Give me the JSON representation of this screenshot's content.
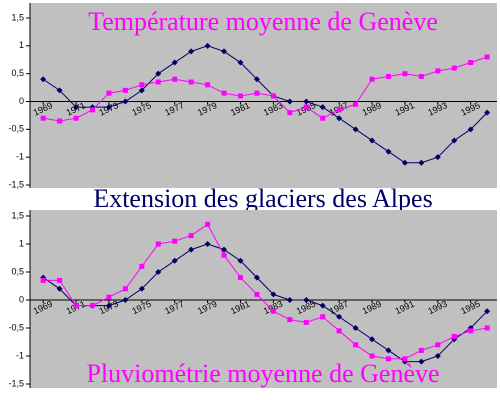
{
  "chart_data": [
    {
      "type": "line",
      "title": "Température moyenne de Genève",
      "x": [
        1969,
        1970,
        1971,
        1972,
        1973,
        1974,
        1975,
        1976,
        1977,
        1978,
        1979,
        1980,
        1981,
        1982,
        1983,
        1984,
        1985,
        1986,
        1987,
        1988,
        1989,
        1990,
        1991,
        1992,
        1993,
        1994,
        1995,
        1996
      ],
      "series": [
        {
          "name": "Extension des glaciers des Alpes",
          "color": "#000066",
          "values": [
            0.4,
            0.2,
            -0.1,
            -0.1,
            -0.1,
            0,
            0.2,
            0.5,
            0.7,
            0.9,
            1.0,
            0.9,
            0.7,
            0.4,
            0.1,
            0,
            0,
            -0.1,
            -0.3,
            -0.5,
            -0.7,
            -0.9,
            -1.1,
            -1.1,
            -1.0,
            -0.7,
            -0.5,
            -0.2
          ]
        },
        {
          "color": "#ff00ff",
          "values": [
            -0.3,
            -0.35,
            -0.3,
            -0.15,
            0.15,
            0.2,
            0.3,
            0.35,
            0.4,
            0.35,
            0.3,
            0.15,
            0.1,
            0.15,
            0.1,
            -0.2,
            -0.1,
            -0.3,
            -0.15,
            -0.05,
            0.4,
            0.45,
            0.5,
            0.45,
            0.55,
            0.6,
            0.7,
            0.8
          ]
        }
      ],
      "xlim": [
        1968.2,
        1996.6
      ],
      "xticks": [
        1969,
        1971,
        1973,
        1975,
        1977,
        1979,
        1981,
        1983,
        1985,
        1987,
        1989,
        1991,
        1993,
        1995
      ],
      "ylim": [
        -1.5,
        1.5
      ],
      "yticks": [
        {
          "value": 1.5,
          "label": "1,5"
        },
        1,
        {
          "value": 0.5,
          "label": "0,5"
        },
        0,
        {
          "value": -0.5,
          "label": "-0,5"
        },
        -1,
        {
          "value": -1.5,
          "label": "-1,5"
        }
      ]
    },
    {
      "type": "line",
      "title": "Pluviométrie moyenne de Genève",
      "x": [
        1969,
        1970,
        1971,
        1972,
        1973,
        1974,
        1975,
        1976,
        1977,
        1978,
        1979,
        1980,
        1981,
        1982,
        1983,
        1984,
        1985,
        1986,
        1987,
        1988,
        1989,
        1990,
        1991,
        1992,
        1993,
        1994,
        1995,
        1996
      ],
      "series": [
        {
          "color": "#000066",
          "values": [
            0.4,
            0.2,
            -0.1,
            -0.1,
            -0.1,
            0,
            0.2,
            0.5,
            0.7,
            0.9,
            1.0,
            0.9,
            0.7,
            0.4,
            0.1,
            0,
            0,
            -0.1,
            -0.3,
            -0.5,
            -0.7,
            -0.9,
            -1.1,
            -1.1,
            -1.0,
            -0.7,
            -0.5,
            -0.2
          ]
        },
        {
          "color": "#ff00ff",
          "values": [
            0.35,
            0.35,
            -0.1,
            -0.1,
            0.05,
            0.2,
            0.6,
            1.0,
            1.05,
            1.15,
            1.35,
            0.8,
            0.4,
            0.1,
            -0.2,
            -0.35,
            -0.4,
            -0.3,
            -0.55,
            -0.8,
            -1.0,
            -1.05,
            -1.05,
            -0.9,
            -0.8,
            -0.65,
            -0.55,
            -0.5
          ]
        }
      ],
      "xlim": [
        1968.2,
        1996.6
      ],
      "xticks": [
        1969,
        1971,
        1973,
        1975,
        1977,
        1979,
        1981,
        1983,
        1985,
        1987,
        1989,
        1991,
        1993,
        1995
      ],
      "ylim": [
        -1.5,
        1.5
      ],
      "yticks": [
        {
          "value": 1.5,
          "label": "1,5"
        },
        1,
        {
          "value": 0.5,
          "label": "0,5"
        },
        0,
        {
          "value": -0.5,
          "label": "-0,5"
        },
        -1,
        {
          "value": -1.5,
          "label": "-1,5"
        }
      ]
    }
  ]
}
